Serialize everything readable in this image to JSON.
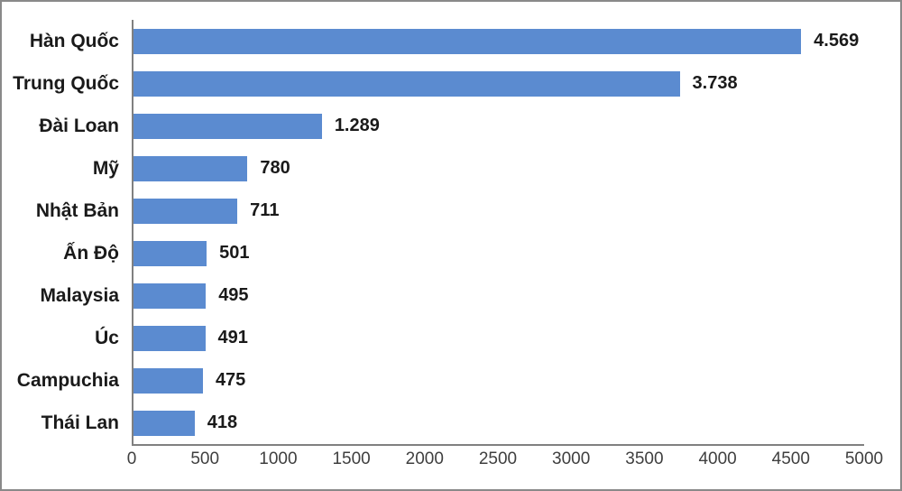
{
  "chart_data": {
    "type": "bar",
    "orientation": "horizontal",
    "title": "",
    "xlabel": "",
    "ylabel": "",
    "categories": [
      "Hàn Quốc",
      "Trung Quốc",
      "Đài Loan",
      "Mỹ",
      "Nhật Bản",
      "Ấn Độ",
      "Malaysia",
      "Úc",
      "Campuchia",
      "Thái Lan"
    ],
    "values": [
      4569,
      3738,
      1289,
      780,
      711,
      501,
      495,
      491,
      475,
      418
    ],
    "value_labels": [
      "4.569",
      "3.738",
      "1.289",
      "780",
      "711",
      "501",
      "495",
      "491",
      "475",
      "418"
    ],
    "xlim": [
      0,
      5000
    ],
    "x_ticks": [
      "0",
      "500",
      "1000",
      "1500",
      "2000",
      "2500",
      "3000",
      "3500",
      "4000",
      "4500",
      "5000"
    ],
    "x_tick_step": 500,
    "grid": false,
    "legend_position": "none",
    "data_labels": "outside-end",
    "colors": {
      "bar": "#5B8BD0",
      "axis_line": "#808080",
      "label_text": "#1a1a1a",
      "tick_text": "#3f3f3f",
      "frame_border": "#898989",
      "background": "#ffffff"
    }
  }
}
